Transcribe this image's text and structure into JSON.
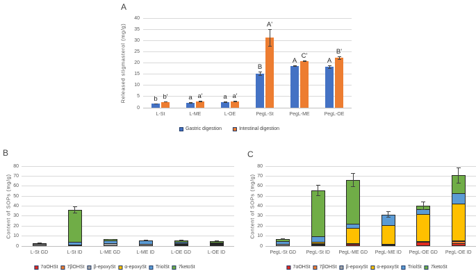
{
  "figure": {
    "background": "#ffffff",
    "panel_labels": {
      "a": "A",
      "b": "B",
      "c": "C"
    }
  },
  "chart_data": [
    {
      "panel": "A",
      "type": "bar",
      "title": "",
      "xlabel": "",
      "ylabel": "Released stigmasterol (mg/g)",
      "ylim": [
        0,
        40
      ],
      "ytick_step": 5,
      "grid": true,
      "legend_position": "bottom",
      "categories": [
        "L-St",
        "L-ME",
        "L-OE",
        "PegL-St",
        "PegL-ME",
        "PegL-OE"
      ],
      "series": [
        {
          "name": "Gastric digestion",
          "color": "#4472C4",
          "values": [
            1.8,
            2.2,
            2.4,
            15.3,
            18.5,
            18.2
          ],
          "errors": [
            0.2,
            0.3,
            0.3,
            0.9,
            0.3,
            0.7
          ],
          "sig_labels": [
            "b",
            "a",
            "a",
            "B",
            "A",
            "A"
          ]
        },
        {
          "name": "Intestinal digestion",
          "color": "#ED7D31",
          "values": [
            2.6,
            2.8,
            2.8,
            31.2,
            20.8,
            22.2
          ],
          "errors": [
            0.2,
            0.2,
            0.2,
            3.9,
            0.4,
            0.9
          ],
          "sig_labels": [
            "b'",
            "a'",
            "a'",
            "A'",
            "C'",
            "B'"
          ]
        }
      ]
    },
    {
      "panel": "B",
      "type": "stacked-bar",
      "title": "",
      "xlabel": "",
      "ylabel": "Content of SOPs (mg/g)",
      "ylim": [
        0,
        80
      ],
      "ytick_step": 10,
      "grid": true,
      "legend_position": "bottom",
      "categories": [
        "L-St GD",
        "L-St ID",
        "L-ME GD",
        "L-ME ID",
        "L-OE GD",
        "L-OE ID"
      ],
      "series": [
        {
          "name": "7αOHSt",
          "color": "#E02B20",
          "values": [
            0.4,
            0.5,
            0.4,
            0.4,
            0.8,
            0.8
          ]
        },
        {
          "name": "7βOHSt",
          "color": "#ED7D31",
          "values": [
            0.3,
            0.4,
            0.4,
            0.3,
            0.3,
            0.3
          ]
        },
        {
          "name": "β-epoxySt",
          "color": "#A5A5A5",
          "values": [
            1.5,
            0.5,
            1.8,
            1.4,
            1.1,
            1.2
          ]
        },
        {
          "name": "α-epoxySt",
          "color": "#FFC000",
          "values": [
            0.2,
            0.3,
            0.5,
            0.3,
            0.4,
            0.3
          ]
        },
        {
          "name": "TriolSt",
          "color": "#5B9BD5",
          "values": [
            0.6,
            2.7,
            2.6,
            2.9,
            1.6,
            1.2
          ]
        },
        {
          "name": "7ketoSt",
          "color": "#70AD47",
          "values": [
            0.0,
            31.6,
            1.0,
            0.5,
            1.6,
            1.3
          ]
        }
      ],
      "totals": [
        3.0,
        36.0,
        6.7,
        5.8,
        5.8,
        5.1
      ],
      "total_errors": [
        0.3,
        3.5,
        0.5,
        0.4,
        0.5,
        0.4
      ]
    },
    {
      "panel": "C",
      "type": "stacked-bar",
      "title": "",
      "xlabel": "",
      "ylabel": "Content of SOPs (mg/g)",
      "ylim": [
        0,
        80
      ],
      "ytick_step": 10,
      "grid": true,
      "legend_position": "bottom",
      "categories": [
        "PegL-St GD",
        "PegL-St ID",
        "PegL-ME GD",
        "PegL-ME ID",
        "PegL-OE GD",
        "PegL-OE ID"
      ],
      "series": [
        {
          "name": "7αOHSt",
          "color": "#E02B20",
          "values": [
            0.5,
            1.2,
            1.8,
            1.5,
            3.9,
            3.0
          ]
        },
        {
          "name": "7βOHSt",
          "color": "#ED7D31",
          "values": [
            0.3,
            1.0,
            0.5,
            0.5,
            1.0,
            1.8
          ]
        },
        {
          "name": "β-epoxySt",
          "color": "#A5A5A5",
          "values": [
            1.2,
            0.5,
            0.3,
            0.3,
            0.3,
            0.5
          ]
        },
        {
          "name": "α-epoxySt",
          "color": "#FFC000",
          "values": [
            0.3,
            1.3,
            15.2,
            18.3,
            27.0,
            37.0
          ]
        },
        {
          "name": "TriolSt",
          "color": "#5B9BD5",
          "values": [
            2.5,
            5.5,
            4.3,
            10.4,
            4.9,
            10.6
          ]
        },
        {
          "name": "7ketoSt",
          "color": "#70AD47",
          "values": [
            2.0,
            46.0,
            44.0,
            0.5,
            3.2,
            17.8
          ]
        }
      ],
      "totals": [
        6.8,
        55.5,
        66.1,
        31.5,
        40.3,
        70.7
      ],
      "total_errors": [
        0.6,
        5.5,
        6.7,
        3.1,
        4.2,
        7.8
      ]
    }
  ]
}
